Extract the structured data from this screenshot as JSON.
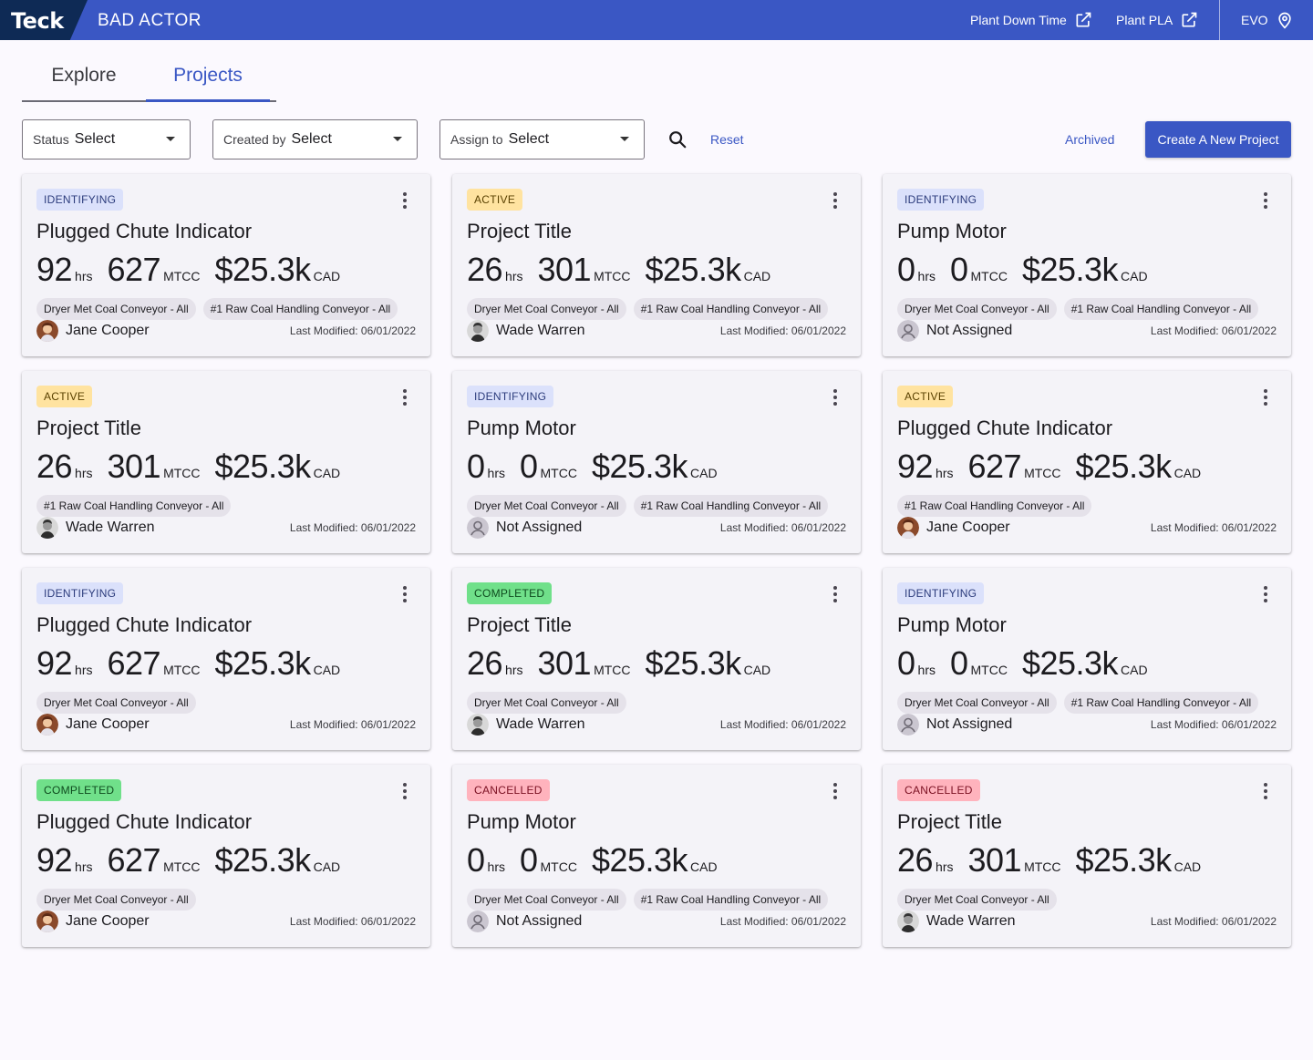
{
  "header": {
    "logo": "Teck",
    "app_title": "BAD ACTOR",
    "links": [
      {
        "label": "Plant Down Time",
        "icon": "external-link-icon"
      },
      {
        "label": "Plant PLA",
        "icon": "external-link-icon"
      },
      {
        "label": "EVO",
        "icon": "location-pin-icon"
      }
    ]
  },
  "tabs": [
    {
      "label": "Explore",
      "active": false
    },
    {
      "label": "Projects",
      "active": true
    }
  ],
  "filters": {
    "status": {
      "label": "Status",
      "value": "Select"
    },
    "created_by": {
      "label": "Created by",
      "value": "Select"
    },
    "assign_to": {
      "label": "Assign to",
      "value": "Select"
    },
    "search_icon": "search-icon",
    "reset": "Reset",
    "archived": "Archived",
    "create": "Create A New Project"
  },
  "colors": {
    "primary": "#3a57c4",
    "identifying": "#dbe1fb",
    "active": "#ffe3a0",
    "completed": "#70e08a",
    "cancelled": "#ffb3bd"
  },
  "cards": [
    {
      "status": "IDENTIFYING",
      "title": "Plugged Chute Indicator",
      "hrs": "92",
      "mtcc": "627",
      "cost": "$25.3k",
      "tags": [
        "Dryer Met Coal Conveyor - All",
        "#1 Raw Coal Handling Conveyor - All"
      ],
      "assignee": "Jane Cooper",
      "avatar": "jane",
      "modified": "Last Modified: 06/01/2022"
    },
    {
      "status": "ACTIVE",
      "title": "Project Title",
      "hrs": "26",
      "mtcc": "301",
      "cost": "$25.3k",
      "tags": [
        "Dryer Met Coal Conveyor - All",
        "#1 Raw Coal Handling Conveyor - All"
      ],
      "assignee": "Wade Warren",
      "avatar": "wade",
      "modified": "Last Modified: 06/01/2022"
    },
    {
      "status": "IDENTIFYING",
      "title": "Pump Motor",
      "hrs": "0",
      "mtcc": "0",
      "cost": "$25.3k",
      "tags": [
        "Dryer Met Coal Conveyor - All",
        "#1 Raw Coal Handling Conveyor - All"
      ],
      "assignee": "Not Assigned",
      "avatar": "none",
      "modified": "Last Modified: 06/01/2022"
    },
    {
      "status": "ACTIVE",
      "title": "Project Title",
      "hrs": "26",
      "mtcc": "301",
      "cost": "$25.3k",
      "tags": [
        "#1 Raw Coal Handling Conveyor - All"
      ],
      "assignee": "Wade Warren",
      "avatar": "wade",
      "modified": "Last Modified: 06/01/2022"
    },
    {
      "status": "IDENTIFYING",
      "title": "Pump Motor",
      "hrs": "0",
      "mtcc": "0",
      "cost": "$25.3k",
      "tags": [
        "Dryer Met Coal Conveyor - All",
        "#1 Raw Coal Handling Conveyor - All"
      ],
      "assignee": "Not Assigned",
      "avatar": "none",
      "modified": "Last Modified: 06/01/2022"
    },
    {
      "status": "ACTIVE",
      "title": "Plugged Chute Indicator",
      "hrs": "92",
      "mtcc": "627",
      "cost": "$25.3k",
      "tags": [
        "#1 Raw Coal Handling Conveyor - All"
      ],
      "assignee": "Jane Cooper",
      "avatar": "jane",
      "modified": "Last Modified: 06/01/2022"
    },
    {
      "status": "IDENTIFYING",
      "title": "Plugged Chute Indicator",
      "hrs": "92",
      "mtcc": "627",
      "cost": "$25.3k",
      "tags": [
        "Dryer Met Coal Conveyor - All"
      ],
      "assignee": "Jane Cooper",
      "avatar": "jane",
      "modified": "Last Modified: 06/01/2022"
    },
    {
      "status": "COMPLETED",
      "title": "Project Title",
      "hrs": "26",
      "mtcc": "301",
      "cost": "$25.3k",
      "tags": [
        "Dryer Met Coal Conveyor - All"
      ],
      "assignee": "Wade Warren",
      "avatar": "wade",
      "modified": "Last Modified: 06/01/2022"
    },
    {
      "status": "IDENTIFYING",
      "title": "Pump Motor",
      "hrs": "0",
      "mtcc": "0",
      "cost": "$25.3k",
      "tags": [
        "Dryer Met Coal Conveyor - All",
        "#1 Raw Coal Handling Conveyor - All"
      ],
      "assignee": "Not Assigned",
      "avatar": "none",
      "modified": "Last Modified: 06/01/2022"
    },
    {
      "status": "COMPLETED",
      "title": "Plugged Chute Indicator",
      "hrs": "92",
      "mtcc": "627",
      "cost": "$25.3k",
      "tags": [
        "Dryer Met Coal Conveyor - All"
      ],
      "assignee": "Jane Cooper",
      "avatar": "jane",
      "modified": "Last Modified: 06/01/2022"
    },
    {
      "status": "CANCELLED",
      "title": "Pump Motor",
      "hrs": "0",
      "mtcc": "0",
      "cost": "$25.3k",
      "tags": [
        "Dryer Met Coal Conveyor - All",
        "#1 Raw Coal Handling Conveyor - All"
      ],
      "assignee": "Not Assigned",
      "avatar": "none",
      "modified": "Last Modified: 06/01/2022"
    },
    {
      "status": "CANCELLED",
      "title": "Project Title",
      "hrs": "26",
      "mtcc": "301",
      "cost": "$25.3k",
      "tags": [
        "Dryer Met Coal Conveyor - All"
      ],
      "assignee": "Wade Warren",
      "avatar": "wade",
      "modified": "Last Modified: 06/01/2022"
    }
  ],
  "units": {
    "hrs": "hrs",
    "mtcc": "MTCC",
    "cost": "CAD"
  }
}
